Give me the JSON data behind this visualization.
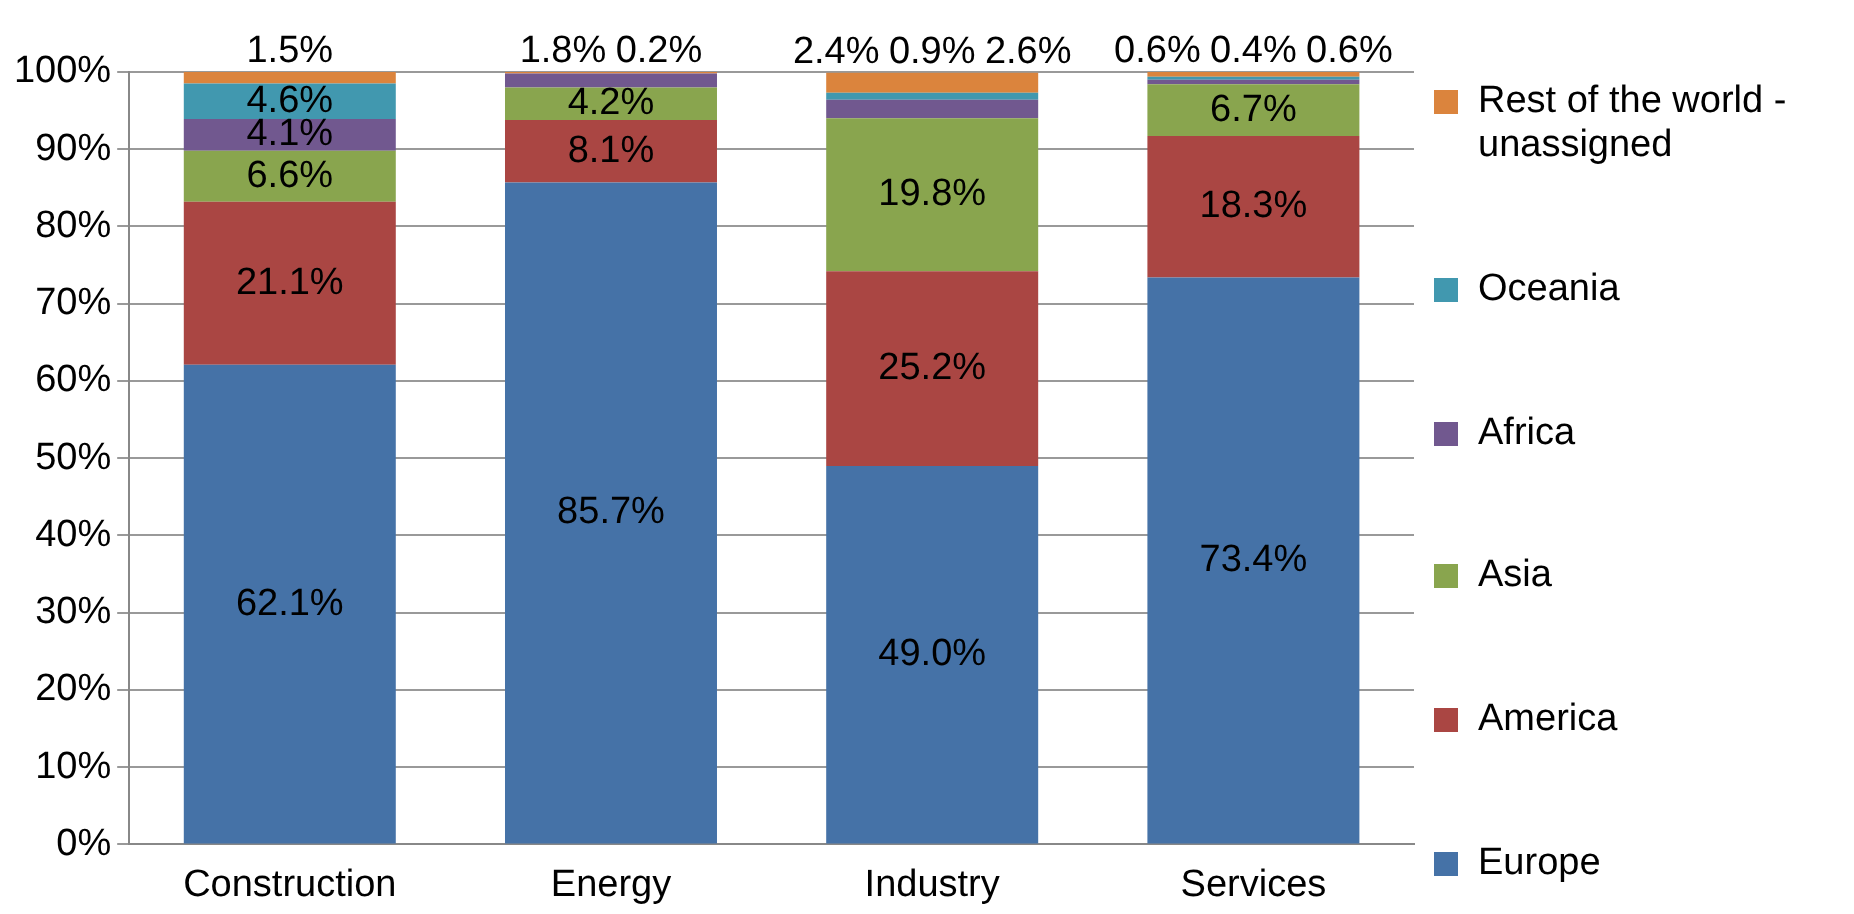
{
  "chart_data": {
    "type": "bar",
    "stacked": true,
    "categories": [
      "Construction",
      "Energy",
      "Industry",
      "Services"
    ],
    "series": [
      {
        "name": "Europe",
        "color": "#4572a7",
        "values": [
          62.1,
          85.7,
          49.0,
          73.4
        ],
        "value_labels": [
          "62.1%",
          "85.7%",
          "49.0%",
          "73.4%"
        ]
      },
      {
        "name": "America",
        "color": "#aa4643",
        "values": [
          21.1,
          8.1,
          25.2,
          18.3
        ],
        "value_labels": [
          "21.1%",
          "8.1%",
          "25.2%",
          "18.3%"
        ]
      },
      {
        "name": "Asia",
        "color": "#89a54e",
        "values": [
          6.6,
          4.2,
          19.8,
          6.7
        ],
        "value_labels": [
          "6.6%",
          "4.2%",
          "19.8%",
          "6.7%"
        ]
      },
      {
        "name": "Africa",
        "color": "#71588f",
        "values": [
          4.1,
          1.8,
          2.4,
          0.6
        ],
        "value_labels": [
          "4.1%",
          "1.8%",
          "2.4%",
          "0.6%"
        ]
      },
      {
        "name": "Oceania",
        "color": "#4198af",
        "values": [
          4.6,
          0,
          0.9,
          0.4
        ],
        "value_labels": [
          "4.6%",
          null,
          "0.9%",
          "0.4%"
        ]
      },
      {
        "name": "Rest of the world - unassigned",
        "color": "#db843d",
        "values": [
          1.5,
          0.2,
          2.6,
          0.6
        ],
        "value_labels": [
          "1.5%",
          "0.2%",
          "2.6%",
          "0.6%"
        ]
      }
    ],
    "ylim": [
      0,
      100
    ],
    "yticks": [
      {
        "value": 0,
        "label": "0%"
      },
      {
        "value": 10,
        "label": "10%"
      },
      {
        "value": 20,
        "label": "20%"
      },
      {
        "value": 30,
        "label": "30%"
      },
      {
        "value": 40,
        "label": "40%"
      },
      {
        "value": 50,
        "label": "50%"
      },
      {
        "value": 60,
        "label": "60%"
      },
      {
        "value": 70,
        "label": "70%"
      },
      {
        "value": 80,
        "label": "80%"
      },
      {
        "value": 90,
        "label": "90%"
      },
      {
        "value": 100,
        "label": "100%"
      }
    ],
    "grid": "y",
    "legend": "right"
  }
}
